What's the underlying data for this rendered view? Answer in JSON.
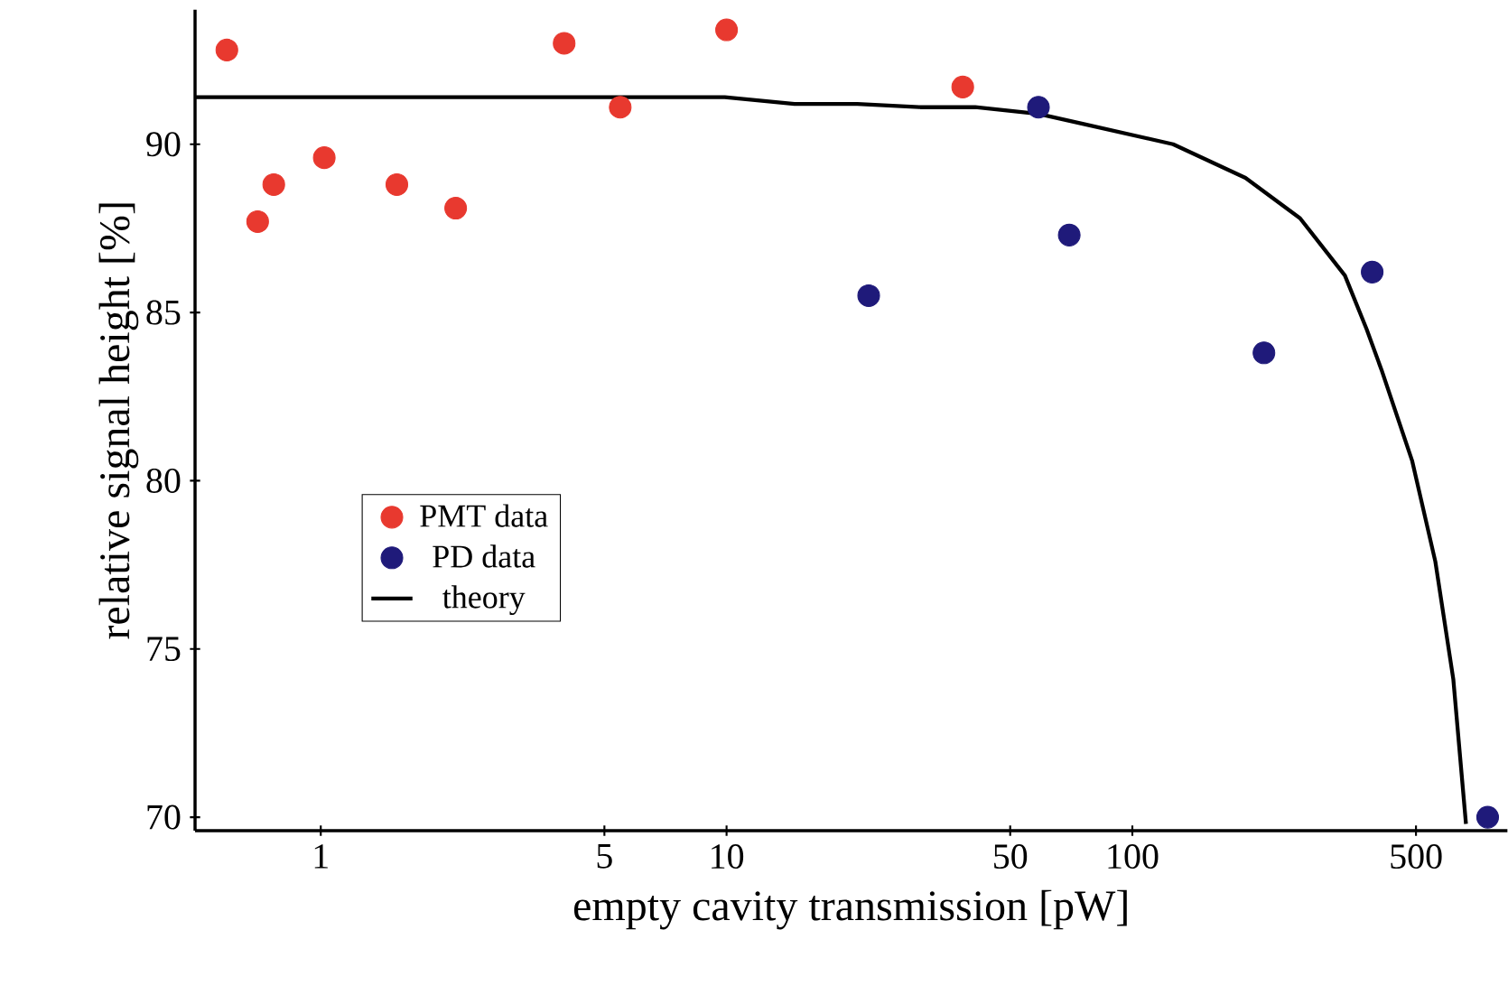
{
  "chart_data": {
    "type": "scatter",
    "xlabel": "empty cavity transmission [pW]",
    "ylabel": "relative signal height [%]",
    "log": "x",
    "grid": false,
    "legend": "bottom left",
    "xlim": [
      0.49,
      840
    ],
    "ylim": [
      69.6,
      94
    ],
    "xticks": [
      1,
      5,
      10,
      50,
      100,
      500
    ],
    "yticks": [
      70,
      75,
      80,
      85,
      90
    ],
    "series": [
      {
        "name": "PMT data",
        "color": "#e8392f",
        "marker": "circle",
        "x": [
          0.587,
          0.699,
          0.766,
          1.02,
          1.54,
          2.15,
          3.98,
          5.47,
          10,
          38.2
        ],
        "values": [
          92.8,
          87.7,
          88.8,
          89.6,
          88.8,
          88.1,
          93.0,
          91.1,
          93.4,
          91.7
        ]
      },
      {
        "name": "PD data",
        "color": "#1f1a7a",
        "marker": "circle",
        "x": [
          22.4,
          58.7,
          69.9,
          211,
          390,
          751
        ],
        "values": [
          85.5,
          91.1,
          87.3,
          83.8,
          86.2,
          70.0
        ]
      },
      {
        "name": "theory",
        "type": "line",
        "color": "#000000",
        "line_style": "solid",
        "marker": "none",
        "x": [
          0.49,
          9.9,
          14.7,
          21,
          30,
          41,
          58.7,
          75.9,
          126,
          190,
          259,
          334,
          378,
          411,
          489,
          558,
          618,
          664
        ],
        "values": [
          91.4,
          91.4,
          91.2,
          91.2,
          91.1,
          91.1,
          90.9,
          90.6,
          90.0,
          89.0,
          87.8,
          86.1,
          84.5,
          83.3,
          80.6,
          77.6,
          74.1,
          69.8
        ]
      }
    ]
  }
}
